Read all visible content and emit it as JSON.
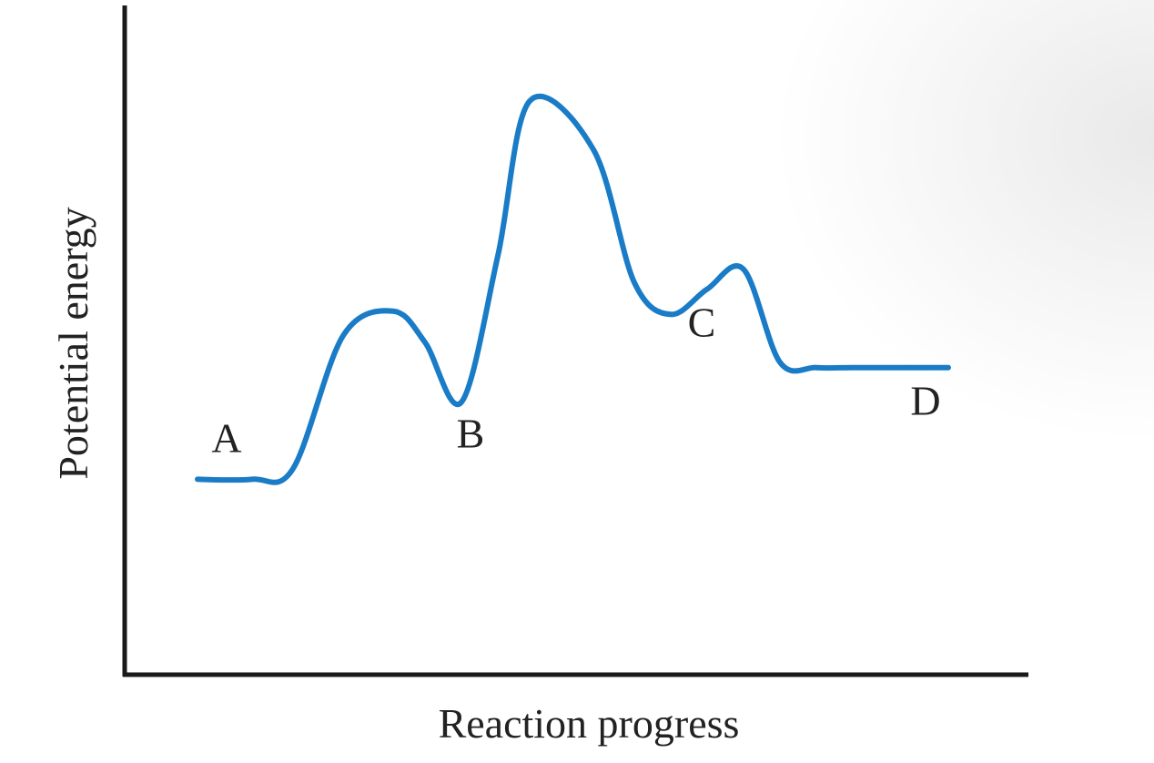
{
  "chart_data": {
    "type": "line",
    "title": "",
    "xlabel": "Reaction progress",
    "ylabel": "Potential energy",
    "grid": false,
    "legend": "none",
    "colors": {
      "curve": "#1a7cc6",
      "axis": "#1a1a1a",
      "text": "#222222"
    },
    "xlim": [
      0,
      100
    ],
    "ylim": [
      0,
      100
    ],
    "series": [
      {
        "x": [
          8,
          14,
          18.5,
          24,
          29.5,
          33,
          37,
          41,
          44.5,
          51.5,
          56,
          60,
          64,
          68,
          72,
          76,
          80,
          84,
          90.5
        ],
        "values": [
          29.4,
          29.4,
          31,
          51,
          54.7,
          50,
          41,
          63,
          86.3,
          79,
          59,
          54.2,
          58,
          61,
          47,
          46.2,
          46.2,
          46.2,
          46.2
        ]
      }
    ],
    "annotations": [
      {
        "label": "A",
        "x": 8,
        "y": 29.4
      },
      {
        "label": "B",
        "x": 37,
        "y": 41
      },
      {
        "label": "C",
        "x": 64,
        "y": 58
      },
      {
        "label": "D",
        "x": 88,
        "y": 46.2
      }
    ]
  }
}
